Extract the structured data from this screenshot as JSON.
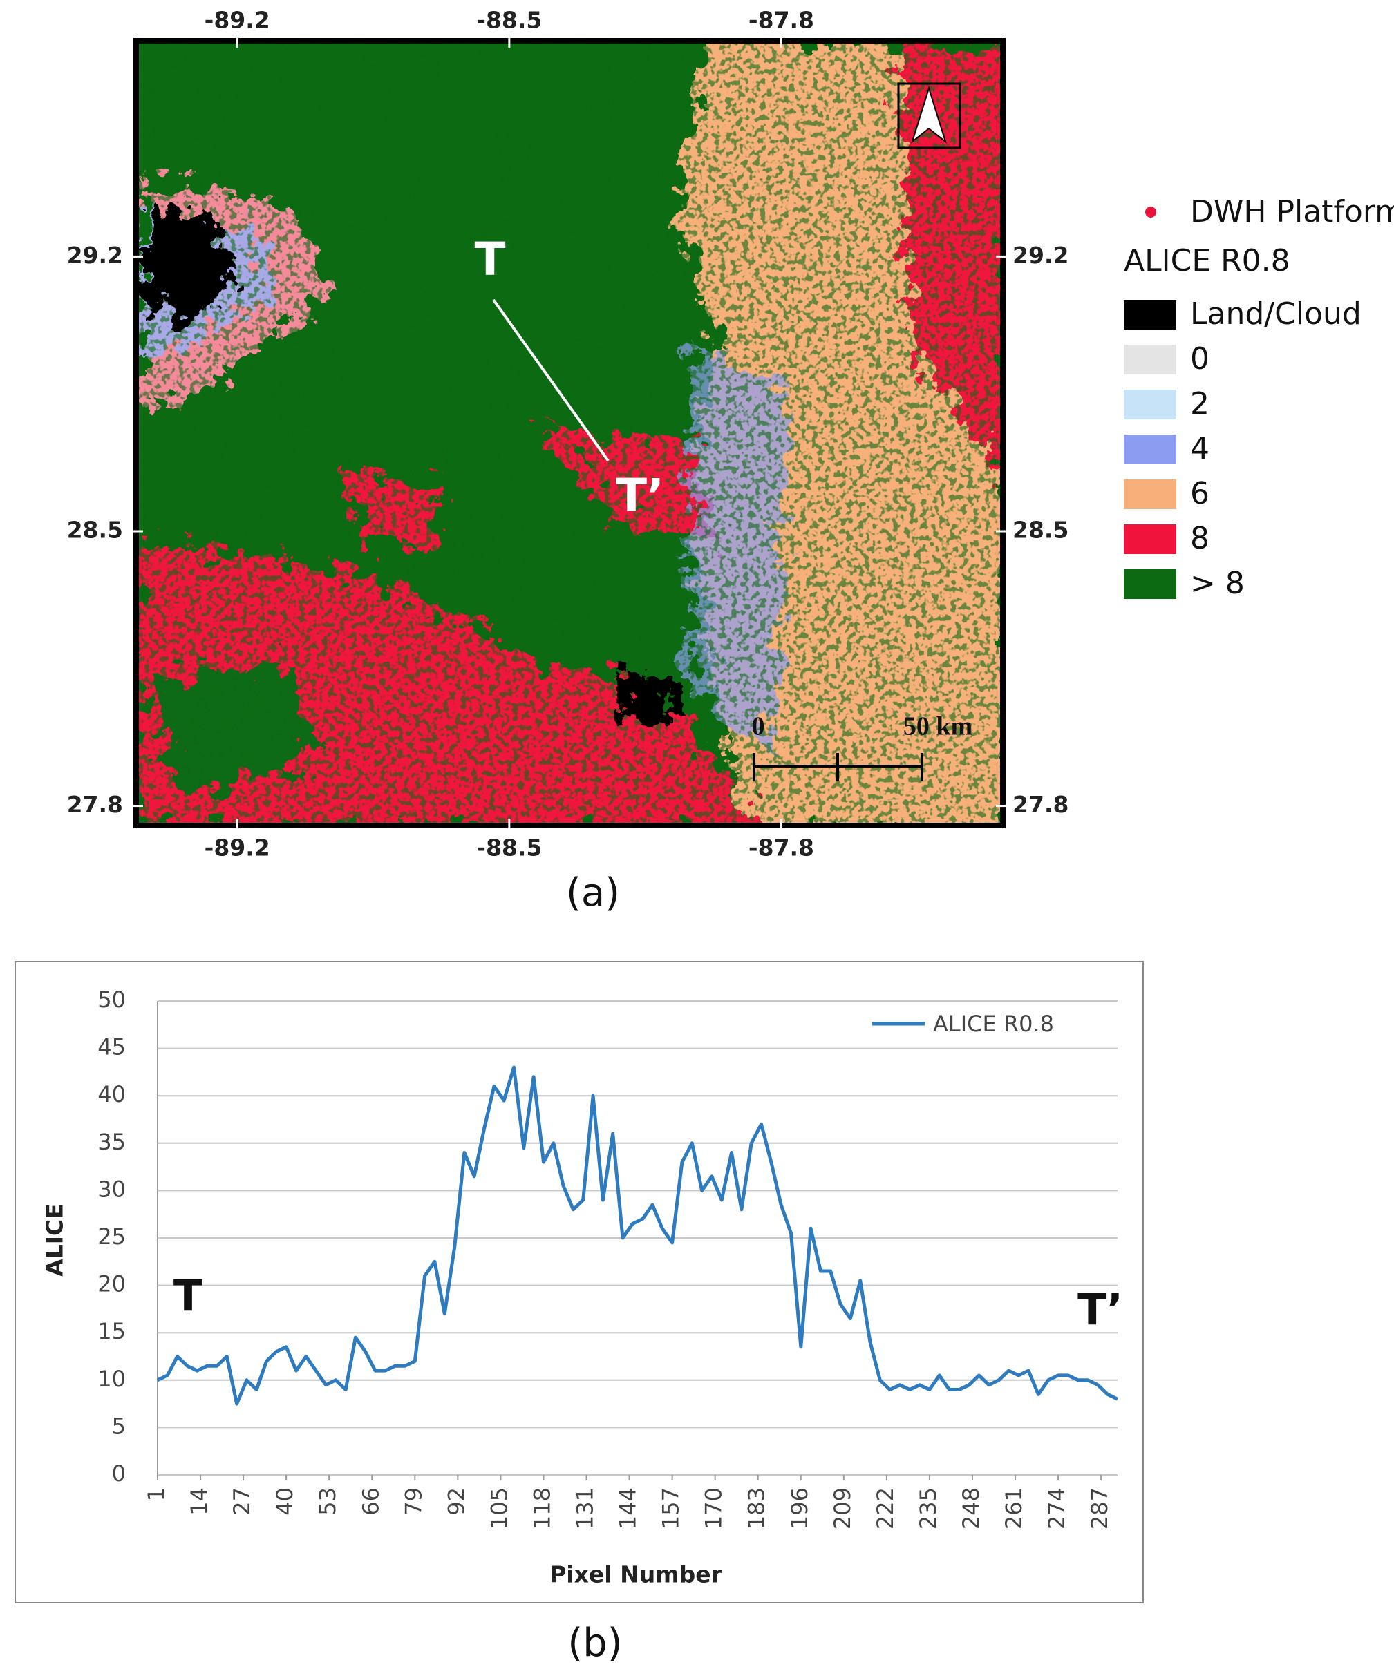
{
  "map": {
    "lonlim": [
      -89.46,
      -87.23
    ],
    "latlim": [
      27.75,
      29.75
    ],
    "lon_ticks": [
      -89.2,
      -88.5,
      -87.8
    ],
    "lat_ticks": [
      29.2,
      28.5,
      27.8
    ],
    "transect_start": "T",
    "transect_end": "T’",
    "scale_bar": {
      "start": "0",
      "end": "50 km"
    },
    "legend": {
      "marker": {
        "label": "DWH Platform",
        "color": "#e8123c"
      },
      "title": "ALICE R0.8",
      "items": [
        {
          "label": "Land/Cloud",
          "color": "#000000"
        },
        {
          "label": "0",
          "color": "#e4e4e4"
        },
        {
          "label": "2",
          "color": "#c6e3f7"
        },
        {
          "label": "4",
          "color": "#8c9cf0"
        },
        {
          "label": "6",
          "color": "#f7b07a"
        },
        {
          "label": "8",
          "color": "#f0143c"
        },
        {
          "label": "> 8",
          "color": "#0b6a12"
        }
      ]
    },
    "caption": "(a)"
  },
  "chart_data": {
    "type": "line",
    "caption": "(b)",
    "xlabel": "Pixel Number",
    "ylabel": "ALICE",
    "annotations": [
      "T",
      "T’"
    ],
    "legend": "upper right",
    "grid": true,
    "xlim": [
      1,
      292
    ],
    "ylim": [
      0,
      50
    ],
    "xticks": [
      1,
      14,
      27,
      40,
      53,
      66,
      79,
      92,
      105,
      118,
      131,
      144,
      157,
      170,
      183,
      196,
      209,
      222,
      235,
      248,
      261,
      274,
      287
    ],
    "yticks": [
      0,
      5,
      10,
      15,
      20,
      25,
      30,
      35,
      40,
      45,
      50
    ],
    "x": [
      1,
      4,
      7,
      10,
      13,
      16,
      19,
      22,
      25,
      28,
      31,
      34,
      37,
      40,
      43,
      46,
      49,
      52,
      55,
      58,
      61,
      64,
      67,
      70,
      73,
      76,
      79,
      82,
      85,
      88,
      91,
      94,
      97,
      100,
      103,
      106,
      109,
      112,
      115,
      118,
      121,
      124,
      127,
      130,
      133,
      136,
      139,
      142,
      145,
      148,
      151,
      154,
      157,
      160,
      163,
      166,
      169,
      172,
      175,
      178,
      181,
      184,
      187,
      190,
      193,
      196,
      199,
      202,
      205,
      208,
      211,
      214,
      217,
      220,
      223,
      226,
      229,
      232,
      235,
      238,
      241,
      244,
      247,
      250,
      253,
      256,
      259,
      262,
      265,
      268,
      271,
      274,
      277,
      280,
      283,
      286,
      289,
      292
    ],
    "series": [
      {
        "name": "ALICE R0.8",
        "color": "#2e7bbf",
        "values": [
          10,
          10.5,
          12.5,
          11.5,
          11,
          11.5,
          11.5,
          12.5,
          7.5,
          10,
          9,
          12,
          13,
          13.5,
          11,
          12.5,
          11,
          9.5,
          10,
          9,
          14.5,
          13,
          11,
          11,
          11.5,
          11.5,
          12,
          21,
          22.5,
          17,
          24,
          34,
          31.5,
          36.5,
          41,
          39.5,
          43,
          34.5,
          42,
          33,
          35,
          30.5,
          28,
          29,
          40,
          29,
          36,
          25,
          26.5,
          27,
          28.5,
          26,
          24.5,
          33,
          35,
          30,
          31.5,
          29,
          34,
          28,
          35,
          37,
          33,
          28.5,
          25.5,
          13.5,
          26,
          21.5,
          21.5,
          18,
          16.5,
          20.5,
          14,
          10,
          9,
          9.5,
          9,
          9.5,
          9,
          10.5,
          9,
          9,
          9.5,
          10.5,
          9.5,
          10,
          11,
          10.5,
          11,
          8.5,
          10,
          10.5,
          10.5,
          10,
          10,
          9.5,
          8.5,
          8
        ]
      }
    ]
  }
}
